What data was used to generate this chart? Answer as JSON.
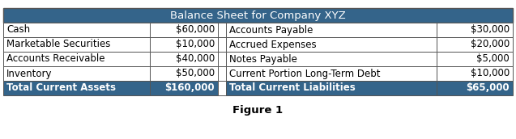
{
  "title": "Balance Sheet for Company XYZ",
  "figure_label": "Figure 1",
  "header_bg": "#34648a",
  "header_text_color": "#FFFFFF",
  "total_row_bg": "#34648a",
  "total_row_text_color": "#FFFFFF",
  "normal_row_bg": "#FFFFFF",
  "normal_row_text_color": "#000000",
  "border_color": "#555555",
  "left_rows": [
    [
      "Cash",
      "$60,000"
    ],
    [
      "Marketable Securities",
      "$10,000"
    ],
    [
      "Accounts Receivable",
      "$40,000"
    ],
    [
      "Inventory",
      "$50,000"
    ],
    [
      "Total Current Assets",
      "$160,000"
    ]
  ],
  "right_rows": [
    [
      "Accounts Payable",
      "$30,000"
    ],
    [
      "Accrued Expenses",
      "$20,000"
    ],
    [
      "Notes Payable",
      "$5,000"
    ],
    [
      "Current Portion Long-Term Debt",
      "$10,000"
    ],
    [
      "Total Current Liabilities",
      "$65,000"
    ]
  ],
  "font_size": 8.5,
  "fig_caption_fontsize": 9.5
}
